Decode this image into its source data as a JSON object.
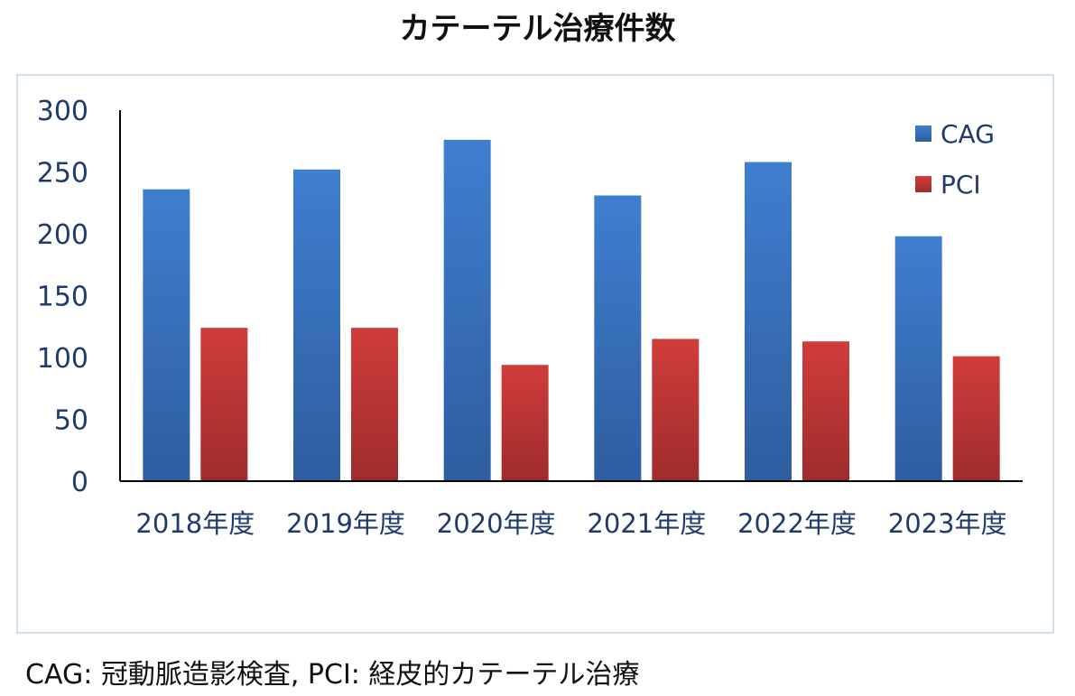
{
  "chart_data": {
    "type": "bar",
    "title": "カテーテル治療件数",
    "categories": [
      "2018年度",
      "2019年度",
      "2020年度",
      "2021年度",
      "2022年度",
      "2023年度"
    ],
    "series": [
      {
        "name": "CAG",
        "values": [
          236,
          252,
          276,
          231,
          258,
          198
        ],
        "color": "#3a76c7"
      },
      {
        "name": "PCI",
        "values": [
          124,
          124,
          94,
          115,
          113,
          101
        ],
        "color": "#c53a3a"
      }
    ],
    "ylim": [
      0,
      300
    ],
    "yticks": [
      "0",
      "50",
      "100",
      "150",
      "200",
      "250",
      "300"
    ],
    "xlabel": "",
    "ylabel": "",
    "grid": false,
    "legend_position": "top-right"
  },
  "footnote": "CAG: 冠動脈造影検査, PCI: 経皮的カテーテル治療",
  "colors": {
    "axis_text": "#1f3a6b",
    "axis_line": "#000000",
    "frame_border": "#d5e1ea"
  }
}
